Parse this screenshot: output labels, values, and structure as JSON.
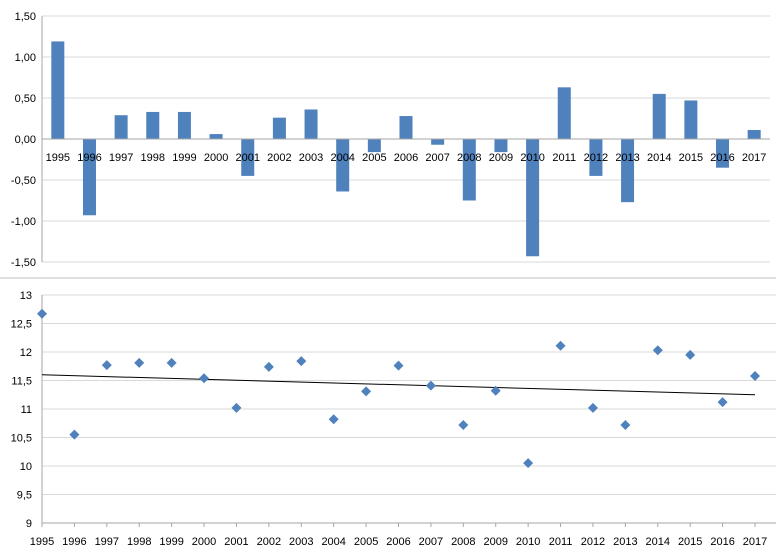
{
  "chart_data": [
    {
      "type": "bar",
      "categories": [
        "1995",
        "1996",
        "1997",
        "1998",
        "1999",
        "2000",
        "2001",
        "2002",
        "2003",
        "2004",
        "2005",
        "2006",
        "2007",
        "2008",
        "2009",
        "2010",
        "2011",
        "2012",
        "2013",
        "2014",
        "2015",
        "2016",
        "2017"
      ],
      "values": [
        1.19,
        -0.93,
        0.29,
        0.33,
        0.33,
        0.06,
        -0.45,
        0.26,
        0.36,
        -0.64,
        -0.16,
        0.28,
        -0.07,
        -0.75,
        -0.16,
        -1.43,
        0.63,
        -0.45,
        -0.77,
        0.55,
        0.47,
        -0.35,
        0.11
      ],
      "ylim": [
        -1.5,
        1.5
      ],
      "yticks": [
        "-1,50",
        "-1,00",
        "-0,50",
        "0,00",
        "0,50",
        "1,00",
        "1,50"
      ],
      "grid": true,
      "colors": {
        "bar": "#4f81bd",
        "grid": "#d9d9d9",
        "axis": "#a6a6a6"
      }
    },
    {
      "type": "scatter",
      "categories": [
        "1995",
        "1996",
        "1997",
        "1998",
        "1999",
        "2000",
        "2001",
        "2002",
        "2003",
        "2004",
        "2005",
        "2006",
        "2007",
        "2008",
        "2009",
        "2010",
        "2011",
        "2012",
        "2013",
        "2014",
        "2015",
        "2016",
        "2017"
      ],
      "values": [
        12.67,
        10.55,
        11.77,
        11.81,
        11.81,
        11.54,
        11.02,
        11.74,
        11.84,
        10.82,
        11.31,
        11.76,
        11.41,
        10.72,
        11.32,
        10.05,
        12.11,
        11.02,
        10.72,
        12.03,
        11.95,
        11.12,
        11.58
      ],
      "trendline": {
        "type": "linear",
        "start": 11.6,
        "end": 11.25
      },
      "ylim": [
        9,
        13
      ],
      "yticks": [
        "9",
        "9,5",
        "10",
        "10,5",
        "11",
        "11,5",
        "12",
        "12,5",
        "13"
      ],
      "grid": true,
      "marker": "diamond",
      "colors": {
        "marker": "#4f81bd",
        "trend": "#000000",
        "grid": "#d9d9d9",
        "axis": "#a6a6a6"
      }
    }
  ]
}
